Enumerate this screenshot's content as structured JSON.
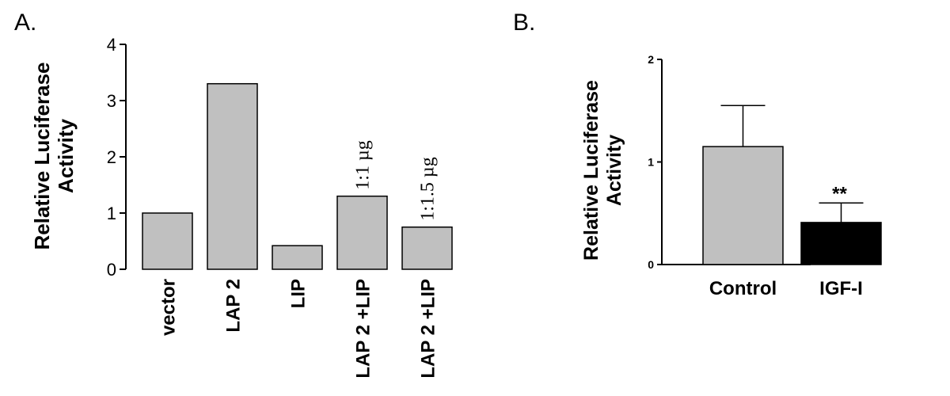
{
  "chart_data": [
    {
      "panel_label": "A.",
      "type": "bar",
      "ylabel_lines": [
        "Relative Luciferase",
        "Activity"
      ],
      "ylim": [
        0,
        4
      ],
      "yticks": [
        "0",
        "1",
        "2",
        "3",
        "4"
      ],
      "categories": [
        "vector",
        "LAP 2",
        "LIP",
        "LAP 2 +LIP",
        "LAP 2 +LIP"
      ],
      "values": [
        1.0,
        3.3,
        0.42,
        1.3,
        0.75
      ],
      "annotations": [
        "",
        "",
        "",
        "1:1 µg",
        "1:1.5 µg"
      ],
      "colors": {
        "bar": "#c0c0c0"
      }
    },
    {
      "panel_label": "B.",
      "type": "bar",
      "ylabel_lines": [
        "Relative Luciferase",
        "Activity"
      ],
      "ylim": [
        0,
        2
      ],
      "yticks": [
        "0",
        "1",
        "2"
      ],
      "categories": [
        "Control",
        "IGF-I"
      ],
      "values": [
        1.15,
        0.41
      ],
      "errors": [
        0.4,
        0.19
      ],
      "significance": [
        "",
        "**"
      ],
      "colors": {
        "bars": [
          "#c0c0c0",
          "#000000"
        ]
      }
    }
  ]
}
